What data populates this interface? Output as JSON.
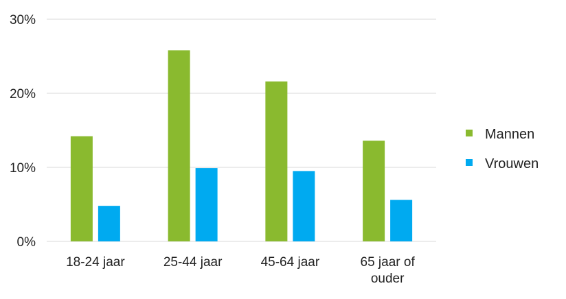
{
  "chart_data": {
    "type": "bar",
    "title": "",
    "xlabel": "",
    "ylabel": "",
    "categories": [
      [
        "18-24 jaar"
      ],
      [
        "25-44 jaar"
      ],
      [
        "45-64 jaar"
      ],
      [
        "65 jaar of",
        "ouder"
      ]
    ],
    "series": [
      {
        "name": "Mannen",
        "color": "#8aba2f",
        "values": [
          14.2,
          25.8,
          21.6,
          13.6
        ]
      },
      {
        "name": "Vrouwen",
        "color": "#00aaf0",
        "values": [
          4.8,
          9.9,
          9.5,
          5.6
        ]
      }
    ],
    "ylim": [
      0,
      30
    ],
    "yticks": [
      {
        "value": 0,
        "label": "0%"
      },
      {
        "value": 10,
        "label": "10%"
      },
      {
        "value": 20,
        "label": "20%"
      },
      {
        "value": 30,
        "label": "30%"
      }
    ],
    "grid": true,
    "gridColor": "#d9d9d9",
    "legend": "right"
  }
}
